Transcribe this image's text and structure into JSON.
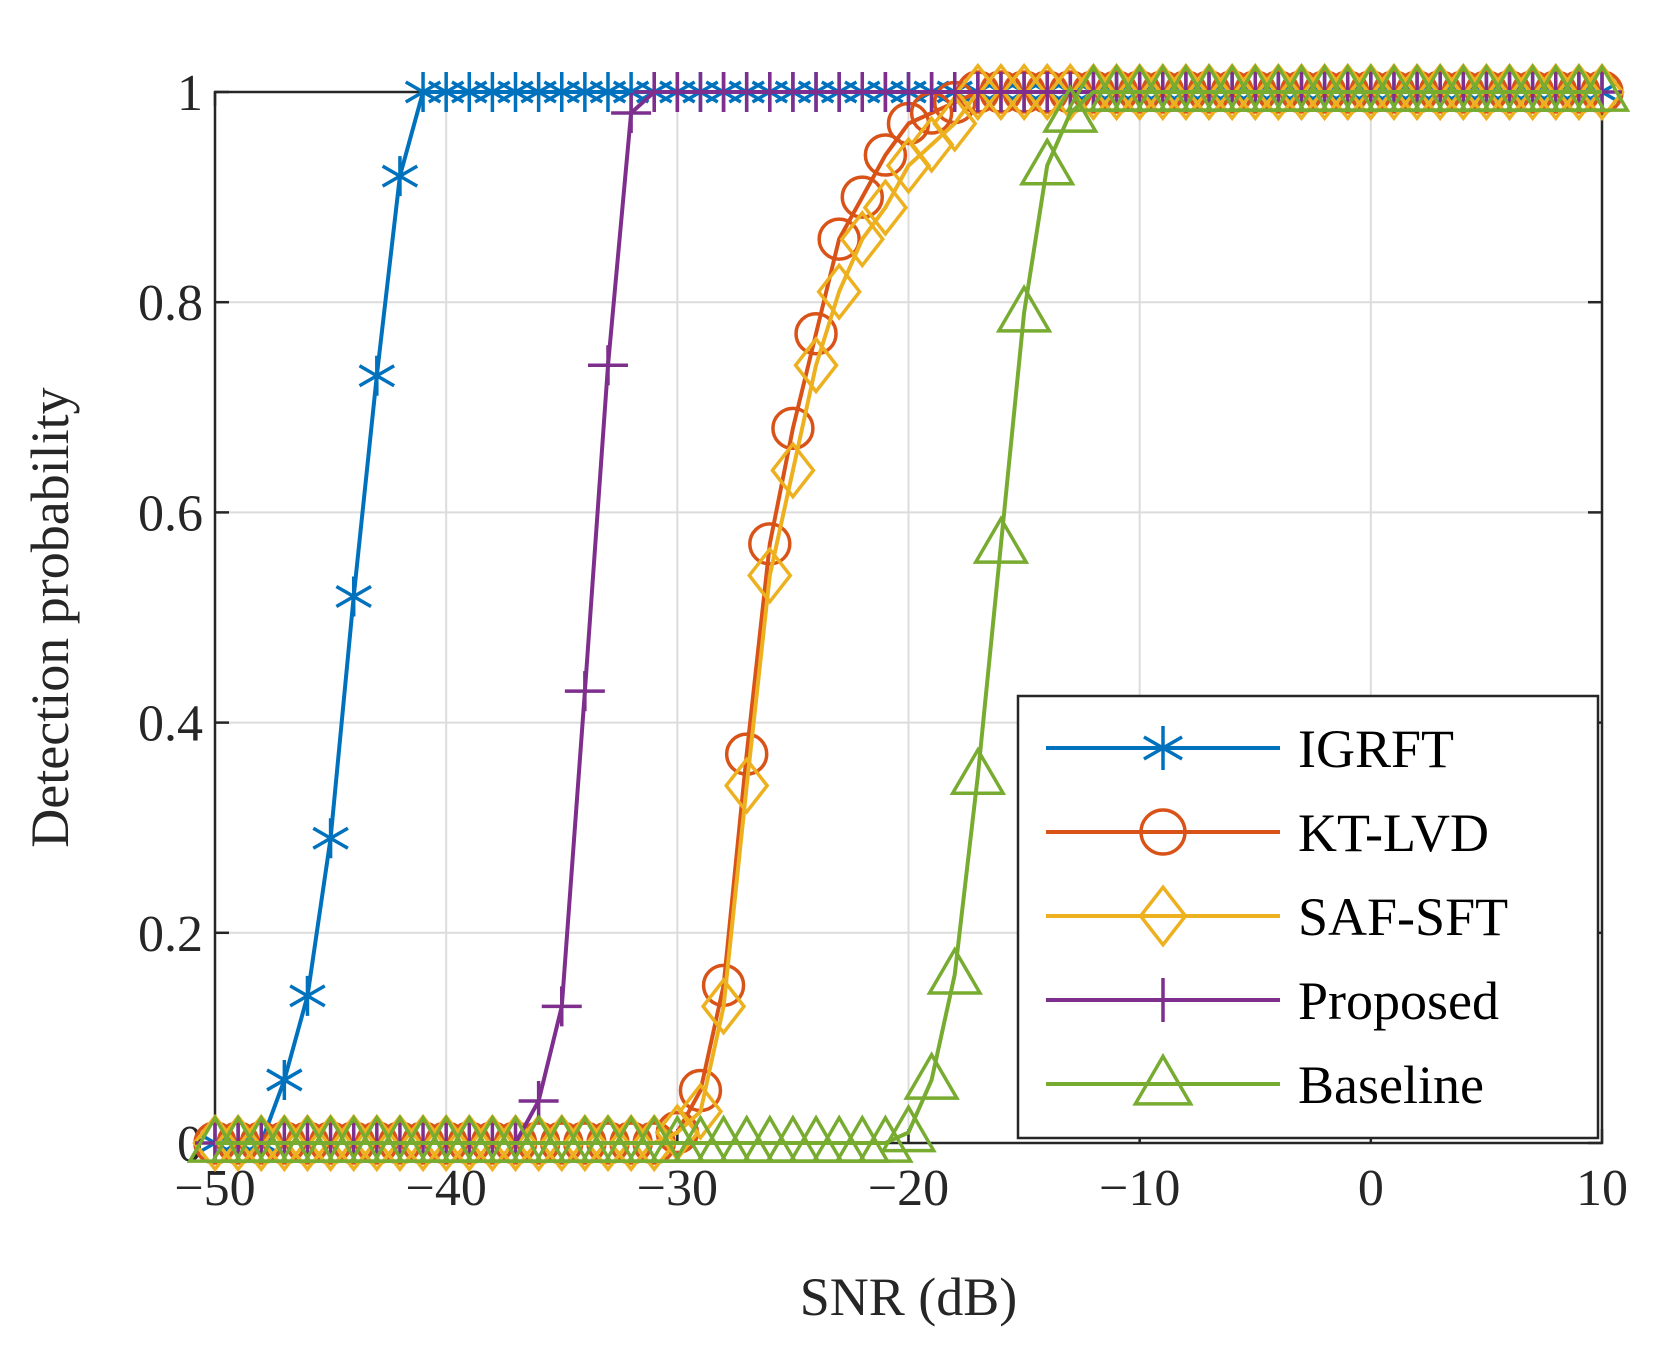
{
  "chart_data": {
    "type": "line",
    "title": "",
    "xlabel": "SNR (dB)",
    "ylabel": "Detection probability",
    "xlim": [
      -50,
      10
    ],
    "ylim": [
      0,
      1
    ],
    "xticks": [
      -50,
      -40,
      -30,
      -20,
      -10,
      0,
      10
    ],
    "xtick_labels": [
      "−50",
      "−40",
      "−30",
      "−20",
      "−10",
      "0",
      "10"
    ],
    "yticks": [
      0,
      0.2,
      0.4,
      0.6,
      0.8,
      1
    ],
    "ytick_labels": [
      "0",
      "0.2",
      "0.4",
      "0.6",
      "0.8",
      "1"
    ],
    "grid": true,
    "legend_position": "bottom-right",
    "x": [
      -50,
      -49,
      -48,
      -47,
      -46,
      -45,
      -44,
      -43,
      -42,
      -41,
      -40,
      -39,
      -38,
      -37,
      -36,
      -35,
      -34,
      -33,
      -32,
      -31,
      -30,
      -29,
      -28,
      -27,
      -26,
      -25,
      -24,
      -23,
      -22,
      -21,
      -20,
      -19,
      -18,
      -17,
      -16,
      -15,
      -14,
      -13,
      -12,
      -11,
      -10,
      -9,
      -8,
      -7,
      -6,
      -5,
      -4,
      -3,
      -2,
      -1,
      0,
      1,
      2,
      3,
      4,
      5,
      6,
      7,
      8,
      9,
      10
    ],
    "series": [
      {
        "name": "IGRFT",
        "color": "#0072BD",
        "marker": "asterisk",
        "values": [
          0,
          0,
          0,
          0.06,
          0.14,
          0.29,
          0.52,
          0.73,
          0.92,
          1,
          1,
          1,
          1,
          1,
          1,
          1,
          1,
          1,
          1,
          1,
          1,
          1,
          1,
          1,
          1,
          1,
          1,
          1,
          1,
          1,
          1,
          1,
          1,
          1,
          1,
          1,
          1,
          1,
          1,
          1,
          1,
          1,
          1,
          1,
          1,
          1,
          1,
          1,
          1,
          1,
          1,
          1,
          1,
          1,
          1,
          1,
          1,
          1,
          1,
          1,
          1
        ]
      },
      {
        "name": "KT-LVD",
        "color": "#D95319",
        "marker": "circle",
        "values": [
          0,
          0,
          0,
          0,
          0,
          0,
          0,
          0,
          0,
          0,
          0,
          0,
          0,
          0,
          0,
          0,
          0,
          0,
          0,
          0,
          0.01,
          0.05,
          0.15,
          0.37,
          0.57,
          0.68,
          0.77,
          0.86,
          0.9,
          0.94,
          0.97,
          0.98,
          0.99,
          1,
          1,
          1,
          1,
          1,
          1,
          1,
          1,
          1,
          1,
          1,
          1,
          1,
          1,
          1,
          1,
          1,
          1,
          1,
          1,
          1,
          1,
          1,
          1,
          1,
          1,
          1,
          1
        ]
      },
      {
        "name": "SAF-SFT",
        "color": "#EDB120",
        "marker": "diamond",
        "values": [
          0,
          0,
          0,
          0,
          0,
          0,
          0,
          0,
          0,
          0,
          0,
          0,
          0,
          0,
          0,
          0,
          0,
          0,
          0,
          0,
          0.01,
          0.03,
          0.13,
          0.34,
          0.54,
          0.64,
          0.74,
          0.81,
          0.86,
          0.89,
          0.93,
          0.95,
          0.97,
          1,
          1,
          1,
          1,
          1,
          1,
          1,
          1,
          1,
          1,
          1,
          1,
          1,
          1,
          1,
          1,
          1,
          1,
          1,
          1,
          1,
          1,
          1,
          1,
          1,
          1,
          1,
          1
        ]
      },
      {
        "name": "Proposed",
        "color": "#7E2F8E",
        "marker": "plus",
        "values": [
          0,
          0,
          0,
          0,
          0,
          0,
          0,
          0,
          0,
          0,
          0,
          0,
          0,
          0,
          0.04,
          0.13,
          0.43,
          0.74,
          0.98,
          1,
          1,
          1,
          1,
          1,
          1,
          1,
          1,
          1,
          1,
          1,
          1,
          1,
          1,
          1,
          1,
          1,
          1,
          1,
          1,
          1,
          1,
          1,
          1,
          1,
          1,
          1,
          1,
          1,
          1,
          1,
          1,
          1,
          1,
          1,
          1,
          1,
          1,
          1,
          1,
          1,
          1
        ]
      },
      {
        "name": "Baseline",
        "color": "#77AC30",
        "marker": "triangle",
        "values": [
          0,
          0,
          0,
          0,
          0,
          0,
          0,
          0,
          0,
          0,
          0,
          0,
          0,
          0,
          0,
          0,
          0,
          0,
          0,
          0,
          0,
          0,
          0,
          0,
          0,
          0,
          0,
          0,
          0,
          0,
          0.01,
          0.06,
          0.16,
          0.35,
          0.57,
          0.79,
          0.93,
          0.98,
          1,
          1,
          1,
          1,
          1,
          1,
          1,
          1,
          1,
          1,
          1,
          1,
          1,
          1,
          1,
          1,
          1,
          1,
          1,
          1,
          1,
          1,
          1
        ]
      }
    ]
  }
}
